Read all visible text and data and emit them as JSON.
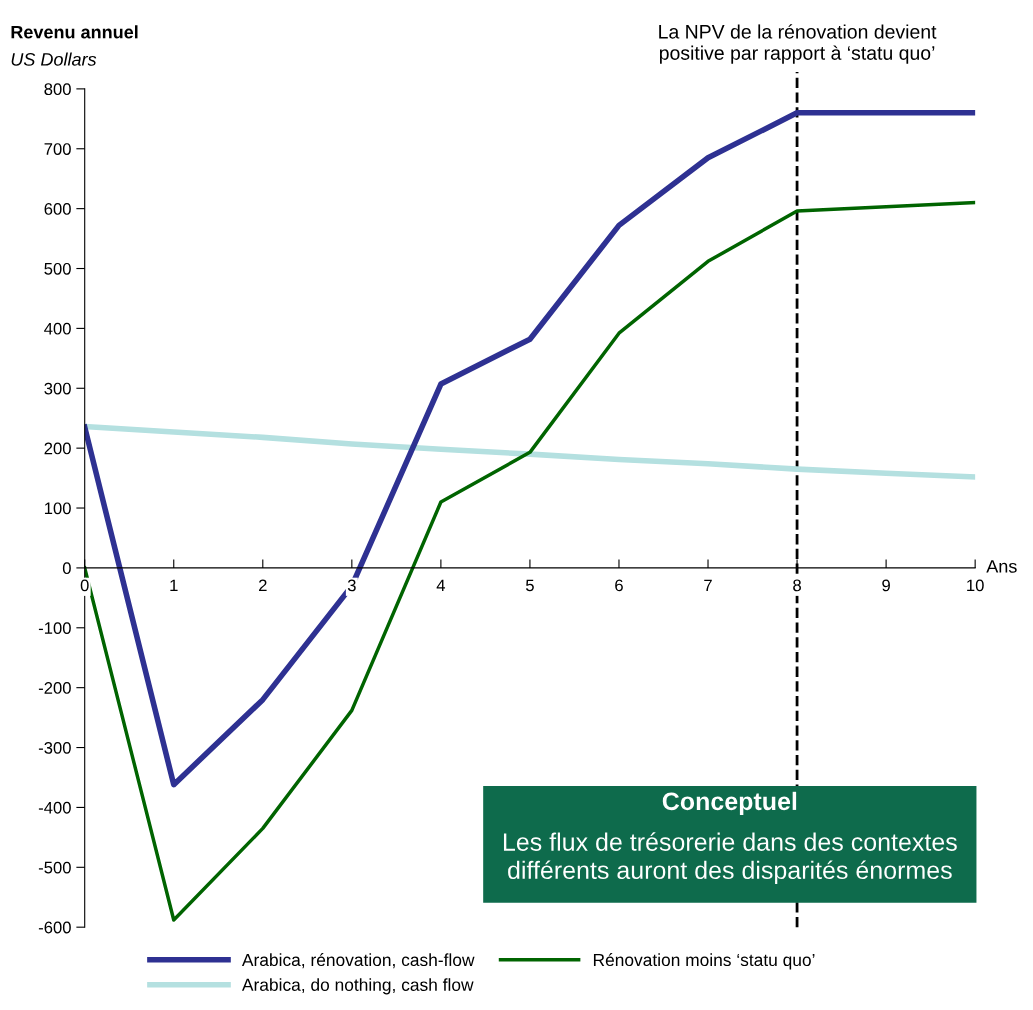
{
  "chart_data": {
    "type": "line",
    "title": "Revenu annuel",
    "ylabel": "US Dollars",
    "xlabel": "Ans",
    "x": [
      0,
      1,
      2,
      3,
      4,
      5,
      6,
      7,
      8,
      9,
      10
    ],
    "series": [
      {
        "name": "Arabica, rénovation, cash-flow",
        "color": "#2e3192",
        "values": [
          235,
          -362,
          -220,
          -30,
          307,
          382,
          572,
          685,
          760,
          760,
          760
        ]
      },
      {
        "name": "Rénovation moins ‘statu quo’",
        "color": "#006400",
        "values": [
          0,
          -588,
          -435,
          -238,
          110,
          193,
          392,
          512,
          596,
          603,
          610
        ]
      },
      {
        "name": "Arabica, do nothing, cash flow",
        "color": "#b4e0e0",
        "values": [
          236,
          227,
          218,
          207,
          198,
          190,
          181,
          174,
          165,
          158,
          152
        ]
      }
    ],
    "xlim": [
      0,
      10
    ],
    "xticks": [
      0,
      1,
      2,
      3,
      4,
      5,
      6,
      7,
      8,
      9,
      10
    ],
    "ylim": [
      -600,
      800
    ],
    "yticks": [
      -600,
      -500,
      -400,
      -300,
      -200,
      -100,
      0,
      100,
      200,
      300,
      400,
      500,
      600,
      700,
      800
    ],
    "ref_lines": [
      {
        "axis": "x",
        "value": 8,
        "label": "La NPV de la rénovation devient positive par rapport à ‘statu quo’",
        "color": "#000000",
        "line_style": "dashed"
      }
    ],
    "annotations": [
      "Conceptuel",
      "Les flux de trésorerie dans des contextes différents auront des disparités énormes"
    ],
    "grid": false,
    "legend": "bottom",
    "marker": "none",
    "line_style": "solid"
  }
}
